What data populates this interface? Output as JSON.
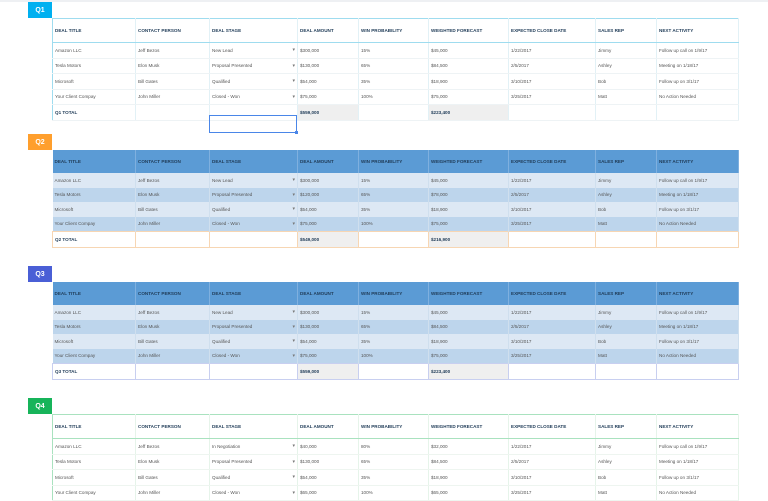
{
  "headers": [
    "DEAL TITLE",
    "CONTACT PERSON",
    "DEAL STAGE",
    "DEAL AMOUNT",
    "WIN PROBABILITY",
    "WEIGHTED FORECAST",
    "EXPECTED CLOSE DATE",
    "SALES REP",
    "NEXT ACTIVITY"
  ],
  "colors": {
    "q1": "#00b0f0",
    "q2": "#ff9f2d",
    "q3": "#4a5fd6",
    "q4": "#17b45a",
    "header_blue": "#5b9bd5",
    "band_light": "#dde8f4",
    "band_dark": "#bdd5ec"
  },
  "q1": {
    "label": "Q1",
    "rows": [
      [
        "Amazon LLC",
        "Jeff Bezos",
        "New Lead",
        "$300,000",
        "15%",
        "$45,000",
        "1/22/2017",
        "Jimmy",
        "Follow up call on 1/9/17"
      ],
      [
        "Tesla Motors",
        "Elon Musk",
        "Proposal Presented",
        "$130,000",
        "65%",
        "$84,500",
        "2/5/2017",
        "Ashley",
        "Meeting on 1/18/17"
      ],
      [
        "Microsoft",
        "Bill Gates",
        "Qualified",
        "$54,000",
        "35%",
        "$18,900",
        "3/10/2017",
        "Bob",
        "Follow up on 3/1/17"
      ],
      [
        "Your Client Compay",
        "John Miller",
        "Closed - Won",
        "$75,000",
        "100%",
        "$75,000",
        "3/25/2017",
        "Matt",
        "No Action Needed"
      ]
    ],
    "total_label": "Q1 TOTAL",
    "total_amount": "$559,000",
    "total_weighted": "$223,400"
  },
  "q2": {
    "label": "Q2",
    "rows": [
      [
        "Amazon LLC",
        "Jeff Bezos",
        "New Lead",
        "$300,000",
        "15%",
        "$45,000",
        "1/22/2017",
        "Jimmy",
        "Follow up call on 1/9/17"
      ],
      [
        "Tesla Motors",
        "Elon Musk",
        "Proposal Presented",
        "$120,000",
        "65%",
        "$78,000",
        "2/5/2017",
        "Ashley",
        "Meeting on 1/18/17"
      ],
      [
        "Microsoft",
        "Bill Gates",
        "Qualified",
        "$54,000",
        "35%",
        "$18,900",
        "3/10/2017",
        "Bob",
        "Follow up on 3/1/17"
      ],
      [
        "Your Client Compay",
        "John Miller",
        "Closed - Won",
        "$75,000",
        "100%",
        "$75,000",
        "3/25/2017",
        "Matt",
        "No Action Needed"
      ]
    ],
    "total_label": "Q2 TOTAL",
    "total_amount": "$549,000",
    "total_weighted": "$216,900"
  },
  "q3": {
    "label": "Q3",
    "rows": [
      [
        "Amazon LLC",
        "Jeff Bezos",
        "New Lead",
        "$300,000",
        "15%",
        "$45,000",
        "1/22/2017",
        "Jimmy",
        "Follow up call on 1/9/17"
      ],
      [
        "Tesla Motors",
        "Elon Musk",
        "Proposal Presented",
        "$130,000",
        "65%",
        "$84,500",
        "2/5/2017",
        "Ashley",
        "Meeting on 1/18/17"
      ],
      [
        "Microsoft",
        "Bill Gates",
        "Qualified",
        "$54,000",
        "35%",
        "$18,900",
        "3/10/2017",
        "Bob",
        "Follow up on 3/1/17"
      ],
      [
        "Your Client Compay",
        "John Miller",
        "Closed - Won",
        "$75,000",
        "100%",
        "$75,000",
        "3/25/2017",
        "Matt",
        "No Action Needed"
      ]
    ],
    "total_label": "Q3 TOTAL",
    "total_amount": "$559,000",
    "total_weighted": "$223,400"
  },
  "q4": {
    "label": "Q4",
    "rows": [
      [
        "Amazon LLC",
        "Jeff Bezos",
        "In Negotiation",
        "$40,000",
        "80%",
        "$32,000",
        "1/22/2017",
        "Jimmy",
        "Follow up call on 1/9/17"
      ],
      [
        "Tesla Motors",
        "Elon Musk",
        "Proposal Presented",
        "$130,000",
        "65%",
        "$84,500",
        "2/5/2017",
        "Ashley",
        "Meeting on 1/18/17"
      ],
      [
        "Microsoft",
        "Bill Gates",
        "Qualified",
        "$54,000",
        "35%",
        "$18,900",
        "3/10/2017",
        "Bob",
        "Follow up on 3/1/17"
      ],
      [
        "Your Client Compay",
        "John Miller",
        "Closed - Won",
        "$65,000",
        "100%",
        "$65,000",
        "3/25/2017",
        "Matt",
        "No Action Needed"
      ]
    ]
  },
  "dropdown_glyph": "▾"
}
